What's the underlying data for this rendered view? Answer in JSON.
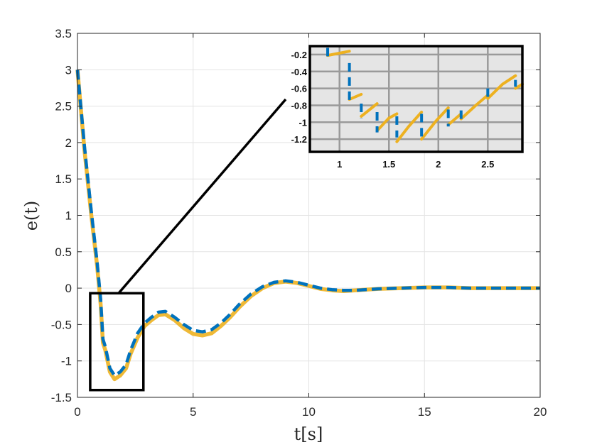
{
  "chart_data": {
    "type": "line",
    "xlabel": "t[s]",
    "ylabel": "e(t)",
    "xlim": [
      0,
      20
    ],
    "ylim": [
      -1.5,
      3.5
    ],
    "x_ticks": [
      "0",
      "5",
      "10",
      "15",
      "20"
    ],
    "y_ticks": [
      "3.5",
      "3",
      "2.5",
      "2",
      "1.5",
      "1",
      "0.5",
      "0",
      "-0.5",
      "-1",
      "-1.5"
    ],
    "grid": true,
    "series": [
      {
        "color": "#0072BD",
        "style": "dashed",
        "x": [
          0,
          0.3,
          0.6,
          0.85,
          1.0,
          1.1,
          1.2,
          1.4,
          1.6,
          1.85,
          2.1,
          2.3,
          2.6,
          2.9,
          3.2,
          3.5,
          3.8,
          4.2,
          4.6,
          5.0,
          5.4,
          5.8,
          6.2,
          6.6,
          7.0,
          7.5,
          8.0,
          8.5,
          9.0,
          9.5,
          10.0,
          10.5,
          11.0,
          11.5,
          12.0,
          13.0,
          14.0,
          15.0,
          16.0,
          17.0,
          18.0,
          19.0,
          20.0
        ],
        "y": [
          3.0,
          1.95,
          1.05,
          0.35,
          -0.15,
          -0.7,
          -0.8,
          -1.1,
          -1.2,
          -1.15,
          -1.05,
          -0.85,
          -0.62,
          -0.48,
          -0.4,
          -0.33,
          -0.32,
          -0.4,
          -0.5,
          -0.58,
          -0.6,
          -0.57,
          -0.48,
          -0.36,
          -0.22,
          -0.08,
          0.02,
          0.08,
          0.1,
          0.08,
          0.04,
          0.0,
          -0.02,
          -0.03,
          -0.03,
          -0.01,
          0.0,
          0.01,
          0.01,
          0.0,
          0.0,
          0.0,
          0.0
        ]
      },
      {
        "color": "#EDB120",
        "style": "solid",
        "x": [
          0,
          0.3,
          0.6,
          0.85,
          1.0,
          1.1,
          1.2,
          1.4,
          1.6,
          1.85,
          2.1,
          2.3,
          2.6,
          2.9,
          3.2,
          3.5,
          3.8,
          4.2,
          4.6,
          5.0,
          5.4,
          5.8,
          6.2,
          6.6,
          7.0,
          7.5,
          8.0,
          8.5,
          9.0,
          9.5,
          10.0,
          10.5,
          11.0,
          11.5,
          12.0,
          13.0,
          14.0,
          15.0,
          16.0,
          17.0,
          18.0,
          19.0,
          20.0
        ],
        "y": [
          3.0,
          1.9,
          1.0,
          0.3,
          -0.22,
          -0.75,
          -0.85,
          -1.15,
          -1.25,
          -1.2,
          -1.1,
          -0.9,
          -0.68,
          -0.52,
          -0.44,
          -0.37,
          -0.36,
          -0.44,
          -0.55,
          -0.63,
          -0.65,
          -0.62,
          -0.52,
          -0.4,
          -0.26,
          -0.11,
          0.0,
          0.07,
          0.09,
          0.07,
          0.03,
          -0.01,
          -0.03,
          -0.04,
          -0.03,
          -0.01,
          0.0,
          0.01,
          0.01,
          0.0,
          0.0,
          0.0,
          0.0
        ]
      }
    ],
    "inset": {
      "xlim": [
        0.7,
        2.85
      ],
      "ylim": [
        -1.35,
        -0.1
      ],
      "x_ticks": [
        "1",
        "1.5",
        "2",
        "2.5"
      ],
      "y_ticks": [
        "-0.2",
        "-0.4",
        "-0.6",
        "-0.8",
        "-1",
        "-1.2"
      ],
      "grid": true,
      "dashed_segments": [
        {
          "x": 0.88,
          "y1": -0.12,
          "y2": -0.24
        },
        {
          "x": 1.1,
          "y1": -0.3,
          "y2": -0.75
        },
        {
          "x": 1.22,
          "y1": -0.78,
          "y2": -0.95
        },
        {
          "x": 1.38,
          "y1": -0.88,
          "y2": -1.12
        },
        {
          "x": 1.58,
          "y1": -0.93,
          "y2": -1.18
        },
        {
          "x": 1.83,
          "y1": -0.9,
          "y2": -1.2
        },
        {
          "x": 2.1,
          "y1": -0.85,
          "y2": -1.05
        },
        {
          "x": 2.23,
          "y1": -0.86,
          "y2": -0.98
        },
        {
          "x": 2.5,
          "y1": -0.6,
          "y2": -0.7
        },
        {
          "x": 2.78,
          "y1": -0.5,
          "y2": -0.58
        }
      ],
      "solid_segments": [
        [
          [
            0.88,
            -0.21
          ],
          [
            1.1,
            -0.16
          ]
        ],
        [
          [
            1.1,
            -0.73
          ],
          [
            1.22,
            -0.67
          ]
        ],
        [
          [
            1.22,
            -0.93
          ],
          [
            1.38,
            -0.78
          ]
        ],
        [
          [
            1.38,
            -1.1
          ],
          [
            1.5,
            -0.95
          ],
          [
            1.58,
            -0.9
          ]
        ],
        [
          [
            1.58,
            -1.23
          ],
          [
            1.7,
            -1.05
          ],
          [
            1.83,
            -0.88
          ]
        ],
        [
          [
            1.83,
            -1.2
          ],
          [
            1.98,
            -0.98
          ],
          [
            2.1,
            -0.83
          ]
        ],
        [
          [
            2.1,
            -1.03
          ],
          [
            2.23,
            -0.9
          ]
        ],
        [
          [
            2.23,
            -0.96
          ],
          [
            2.38,
            -0.8
          ],
          [
            2.5,
            -0.68
          ]
        ],
        [
          [
            2.5,
            -0.72
          ],
          [
            2.65,
            -0.55
          ],
          [
            2.78,
            -0.45
          ]
        ],
        [
          [
            2.78,
            -0.6
          ],
          [
            2.85,
            -0.55
          ]
        ]
      ]
    },
    "zoom_box": {
      "x_range": [
        0.55,
        2.85
      ],
      "y_range": [
        -1.4,
        -0.07
      ]
    }
  }
}
